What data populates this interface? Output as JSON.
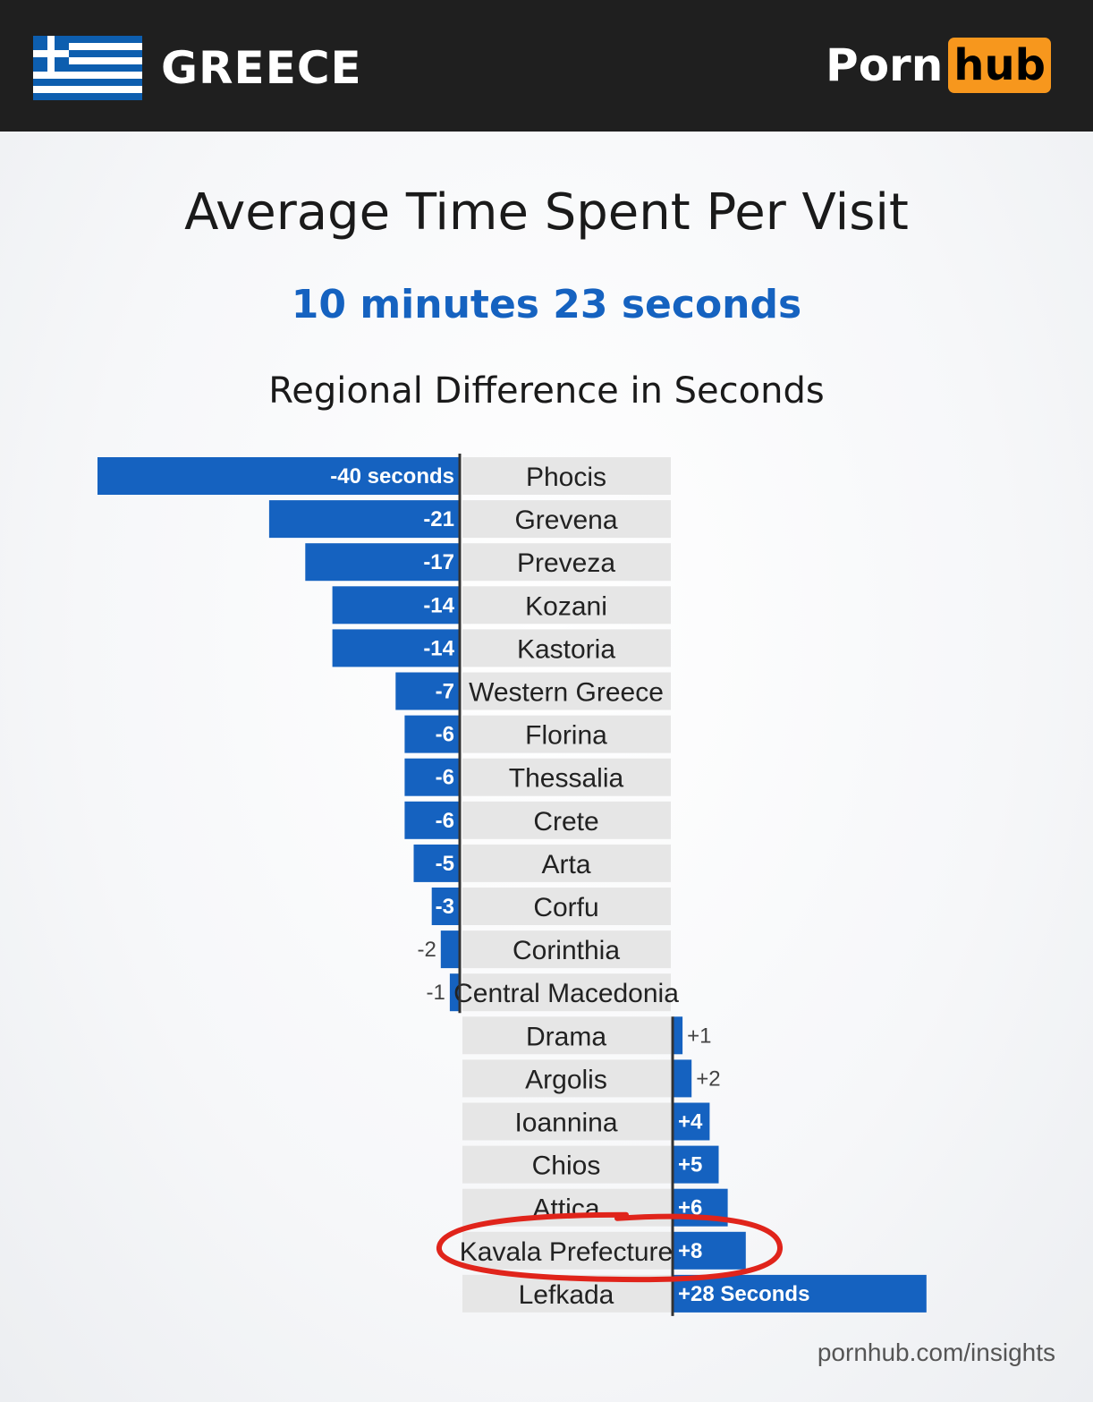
{
  "header": {
    "country": "GREECE",
    "logo_left": "Porn",
    "logo_right": "hub"
  },
  "colors": {
    "bar": "#1562c0",
    "label_bg": "#e6e6e6",
    "header_bg": "#1f1f1f",
    "accent": "#f7971d",
    "highlight": "#e0241b"
  },
  "chart_data": {
    "type": "bar",
    "orientation": "horizontal-diverging",
    "title": "Average Time Spent Per Visit",
    "subtitle": "10 minutes 23 seconds",
    "section_title": "Regional Difference in Seconds",
    "categories": [
      "Phocis",
      "Grevena",
      "Preveza",
      "Kozani",
      "Kastoria",
      "Western Greece",
      "Florina",
      "Thessalia",
      "Crete",
      "Arta",
      "Corfu",
      "Corinthia",
      "Central Macedonia",
      "Drama",
      "Argolis",
      "Ioannina",
      "Chios",
      "Attica",
      "Kavala Prefecture",
      "Lefkada"
    ],
    "values": [
      -40,
      -21,
      -17,
      -14,
      -14,
      -7,
      -6,
      -6,
      -6,
      -5,
      -3,
      -2,
      -1,
      1,
      2,
      4,
      5,
      6,
      8,
      28
    ],
    "value_labels": [
      "-40 seconds",
      "-21",
      "-17",
      "-14",
      "-14",
      "-7",
      "-6",
      "-6",
      "-6",
      "-5",
      "-3",
      "-2",
      "-1",
      "+1",
      "+2",
      "+4",
      "+5",
      "+6",
      "+8",
      "+28 Seconds"
    ],
    "highlighted": "Kavala Prefecture",
    "xlim": [
      -40,
      28
    ]
  },
  "footer": {
    "source": "pornhub.com/insights"
  }
}
